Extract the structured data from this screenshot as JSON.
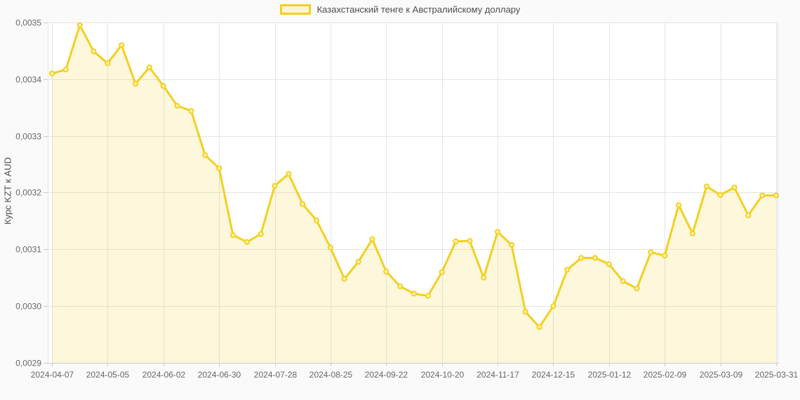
{
  "legend": {
    "series_label": "Казахстанский тенге к Австралийскому доллару"
  },
  "y_axis": {
    "title": "Курс KZT к AUD",
    "tick_labels": [
      "0,0035",
      "0,0034",
      "0,0033",
      "0,0032",
      "0,0031",
      "0,0030",
      "0,0029"
    ],
    "tick_values": [
      0.0035,
      0.0034,
      0.0033,
      0.0032,
      0.0031,
      0.003,
      0.0029
    ]
  },
  "x_axis": {
    "tick_labels": [
      "2024-04-07",
      "2024-05-05",
      "2024-06-02",
      "2024-06-30",
      "2024-07-28",
      "2024-08-25",
      "2024-09-22",
      "2024-10-20",
      "2024-11-17",
      "2024-12-15",
      "2025-01-12",
      "2025-02-09",
      "2025-03-09",
      "2025-03-31"
    ]
  },
  "colors": {
    "line": "#f2d021",
    "area_fill": "rgba(242,208,33,0.16)",
    "marker_fill": "#fcf1a6",
    "legend_swatch_fill": "#fbf5d8",
    "grid": "#e4e4e4",
    "axis_line": "#c9c9c9",
    "tick_text": "#666666",
    "label_text": "#4d4d4d",
    "plot_bg": "#ffffff",
    "page_bg": "#fafafa"
  },
  "chart_data": {
    "type": "area",
    "title": "Казахстанский тенге к Австралийскому доллару",
    "xlabel": "",
    "ylabel": "Курс KZT к AUD",
    "ylim": [
      0.0029,
      0.0035
    ],
    "y_tick_step": 0.0001,
    "x_tick_every": 4,
    "grid": true,
    "legend_position": "top-center",
    "decimal_separator": ",",
    "marker": "circle",
    "x": [
      "2024-04-07",
      "2024-04-14",
      "2024-04-21",
      "2024-04-28",
      "2024-05-05",
      "2024-05-12",
      "2024-05-19",
      "2024-05-26",
      "2024-06-02",
      "2024-06-09",
      "2024-06-16",
      "2024-06-23",
      "2024-06-30",
      "2024-07-07",
      "2024-07-14",
      "2024-07-21",
      "2024-07-28",
      "2024-08-04",
      "2024-08-11",
      "2024-08-18",
      "2024-08-25",
      "2024-09-01",
      "2024-09-08",
      "2024-09-15",
      "2024-09-22",
      "2024-09-29",
      "2024-10-06",
      "2024-10-13",
      "2024-10-20",
      "2024-10-27",
      "2024-11-03",
      "2024-11-10",
      "2024-11-17",
      "2024-11-24",
      "2024-12-01",
      "2024-12-08",
      "2024-12-15",
      "2024-12-22",
      "2024-12-29",
      "2025-01-05",
      "2025-01-12",
      "2025-01-19",
      "2025-01-26",
      "2025-02-02",
      "2025-02-09",
      "2025-02-16",
      "2025-02-23",
      "2025-03-02",
      "2025-03-09",
      "2025-03-16",
      "2025-03-23",
      "2025-03-30",
      "2025-03-31"
    ],
    "values": [
      0.00341,
      0.003417,
      0.003495,
      0.003449,
      0.003428,
      0.00346,
      0.003392,
      0.003421,
      0.003388,
      0.003353,
      0.003344,
      0.003266,
      0.003243,
      0.003125,
      0.003113,
      0.003127,
      0.003212,
      0.003233,
      0.00318,
      0.003151,
      0.003103,
      0.003048,
      0.003078,
      0.003118,
      0.003061,
      0.003035,
      0.003022,
      0.003018,
      0.00306,
      0.003114,
      0.003115,
      0.00305,
      0.003131,
      0.003108,
      0.00299,
      0.002963,
      0.003,
      0.003064,
      0.003085,
      0.003085,
      0.003074,
      0.003044,
      0.003031,
      0.003095,
      0.003089,
      0.003178,
      0.003128,
      0.003211,
      0.003196,
      0.003209,
      0.00316,
      0.003195,
      0.003195
    ]
  }
}
